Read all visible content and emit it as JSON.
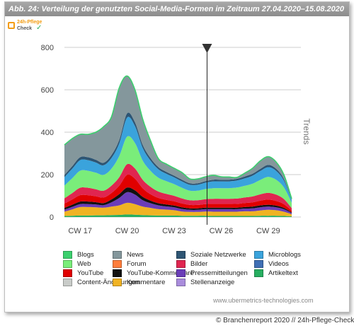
{
  "header": {
    "title": "Abb. 24: Verteilung  der genutzten  Social-Media-Formen  im Zeitraum  27.04.2020–15.08.2020"
  },
  "logo": {
    "line1": "24h-Pflege",
    "line2": "Check"
  },
  "source_note": "www.ubermetrics-technologies.com",
  "footer": "© Branchenreport 2020 // 24h-Pflege-Check.de",
  "chart_data": {
    "type": "area",
    "stacked": true,
    "title": "",
    "xlabel": "",
    "ylabel": "Trends",
    "ylim": [
      0,
      800
    ],
    "yticks": [
      0,
      200,
      400,
      600,
      800
    ],
    "grid": true,
    "legend_position": "bottom",
    "xtick_labels": [
      "CW 17",
      "CW 20",
      "CW 23",
      "CW 26",
      "CW 29"
    ],
    "xtick_positions": [
      17,
      20,
      23,
      26,
      29
    ],
    "x": [
      16,
      16.5,
      17,
      17.5,
      18,
      18.5,
      19,
      19.5,
      20,
      20.5,
      21,
      21.5,
      22,
      22.5,
      23,
      23.5,
      24,
      24.5,
      25,
      25.5,
      26,
      26.5,
      27,
      27.5,
      28,
      28.5,
      29,
      29.5,
      30,
      30.5
    ],
    "marker_x": 25.1,
    "series": [
      {
        "name": "Artikeltext",
        "color": "#27ae60",
        "values": [
          5,
          6,
          7,
          7,
          8,
          8,
          9,
          10,
          12,
          11,
          9,
          8,
          7,
          7,
          7,
          6,
          6,
          6,
          6,
          5,
          5,
          5,
          5,
          5,
          5,
          6,
          6,
          6,
          5,
          3
        ]
      },
      {
        "name": "Kommentare",
        "color": "#f0b323",
        "values": [
          20,
          30,
          40,
          40,
          38,
          36,
          40,
          45,
          55,
          50,
          40,
          35,
          30,
          28,
          25,
          20,
          18,
          18,
          20,
          20,
          20,
          20,
          20,
          22,
          22,
          25,
          28,
          26,
          20,
          10
        ]
      },
      {
        "name": "Pressemitteilungen",
        "color": "#6a3db8",
        "values": [
          10,
          12,
          14,
          14,
          13,
          12,
          20,
          35,
          50,
          45,
          30,
          22,
          18,
          15,
          14,
          12,
          10,
          10,
          11,
          12,
          12,
          12,
          12,
          13,
          14,
          15,
          15,
          14,
          12,
          6
        ]
      },
      {
        "name": "YouTube-Kommentare",
        "color": "#111111",
        "values": [
          8,
          10,
          12,
          12,
          11,
          10,
          14,
          18,
          22,
          20,
          16,
          12,
          10,
          9,
          8,
          8,
          7,
          7,
          7,
          7,
          7,
          7,
          7,
          7,
          8,
          9,
          9,
          8,
          6,
          3
        ]
      },
      {
        "name": "YouTube",
        "color": "#e00000",
        "values": [
          20,
          25,
          30,
          30,
          28,
          26,
          30,
          40,
          60,
          55,
          40,
          30,
          25,
          22,
          20,
          18,
          16,
          16,
          17,
          18,
          18,
          18,
          18,
          19,
          20,
          22,
          24,
          22,
          18,
          8
        ]
      },
      {
        "name": "Bilder",
        "color": "#e02550",
        "values": [
          25,
          30,
          35,
          35,
          33,
          32,
          35,
          40,
          50,
          48,
          40,
          35,
          30,
          28,
          26,
          24,
          22,
          22,
          23,
          24,
          24,
          24,
          25,
          26,
          28,
          30,
          32,
          30,
          24,
          12
        ]
      },
      {
        "name": "Web",
        "color": "#7aed7a",
        "values": [
          60,
          70,
          80,
          80,
          78,
          75,
          80,
          100,
          130,
          120,
          90,
          75,
          65,
          60,
          55,
          50,
          45,
          45,
          48,
          50,
          50,
          50,
          52,
          55,
          60,
          68,
          75,
          70,
          55,
          25
        ]
      },
      {
        "name": "Microblogs",
        "color": "#3aa3dc",
        "values": [
          40,
          45,
          50,
          50,
          48,
          45,
          50,
          60,
          90,
          80,
          60,
          48,
          40,
          35,
          32,
          30,
          28,
          28,
          30,
          32,
          32,
          32,
          33,
          35,
          38,
          42,
          46,
          42,
          32,
          12
        ]
      },
      {
        "name": "Soziale  Netzwerke",
        "color": "#2e5573",
        "values": [
          10,
          12,
          14,
          14,
          13,
          12,
          14,
          16,
          20,
          18,
          14,
          12,
          10,
          9,
          8,
          8,
          7,
          7,
          7,
          8,
          8,
          8,
          8,
          9,
          9,
          10,
          11,
          10,
          8,
          3
        ]
      },
      {
        "name": "News",
        "color": "#84979c",
        "values": [
          142,
          130,
          108,
          108,
          130,
          170,
          180,
          246,
          176,
          153,
          121,
          82,
          40,
          37,
          35,
          34,
          21,
          21,
          21,
          21,
          14,
          13,
          7,
          16,
          26,
          38,
          39,
          32,
          20,
          4
        ]
      },
      {
        "name": "Blogs",
        "color": "#3cd06e",
        "values": [
          0,
          0,
          0,
          0,
          0,
          0,
          0,
          0,
          0,
          0,
          0,
          0,
          0,
          0,
          0,
          0,
          0,
          0,
          0,
          0,
          0,
          0,
          0,
          0,
          0,
          0,
          0,
          0,
          0,
          0
        ]
      },
      {
        "name": "Forum",
        "color": "#ff7d3b",
        "values": [
          0,
          0,
          0,
          0,
          0,
          0,
          0,
          0,
          0,
          0,
          0,
          0,
          0,
          0,
          0,
          0,
          0,
          0,
          0,
          0,
          0,
          0,
          0,
          0,
          0,
          0,
          0,
          0,
          0,
          0
        ]
      },
      {
        "name": "Videos",
        "color": "#3f6fb5",
        "values": [
          0,
          0,
          0,
          0,
          0,
          0,
          0,
          0,
          0,
          0,
          0,
          0,
          0,
          0,
          0,
          0,
          0,
          0,
          0,
          0,
          0,
          0,
          0,
          0,
          0,
          0,
          0,
          0,
          0,
          0
        ]
      },
      {
        "name": "Content-Änderungen",
        "color": "#c9ccc9",
        "values": [
          0,
          0,
          0,
          0,
          0,
          0,
          0,
          0,
          0,
          0,
          0,
          0,
          0,
          0,
          0,
          0,
          0,
          0,
          0,
          0,
          0,
          0,
          0,
          0,
          0,
          0,
          0,
          0,
          0,
          0
        ]
      },
      {
        "name": "Stellenanzeige",
        "color": "#a98cdc",
        "values": [
          0,
          0,
          0,
          0,
          0,
          0,
          0,
          0,
          0,
          0,
          0,
          0,
          0,
          0,
          0,
          0,
          0,
          0,
          0,
          0,
          0,
          0,
          0,
          0,
          0,
          0,
          0,
          0,
          0,
          0
        ]
      }
    ],
    "legend": [
      {
        "name": "Blogs",
        "color": "#3cd06e"
      },
      {
        "name": "News",
        "color": "#84979c"
      },
      {
        "name": "Soziale  Netzwerke",
        "color": "#2e5573"
      },
      {
        "name": "Microblogs",
        "color": "#3aa3dc"
      },
      {
        "name": "Web",
        "color": "#7aed7a"
      },
      {
        "name": "Forum",
        "color": "#ff7d3b"
      },
      {
        "name": "Bilder",
        "color": "#e02550"
      },
      {
        "name": "Videos",
        "color": "#3f6fb5"
      },
      {
        "name": "YouTube",
        "color": "#e00000"
      },
      {
        "name": "YouTube-Kommentare",
        "color": "#111111"
      },
      {
        "name": "Pressemitteilungen",
        "color": "#6a3db8"
      },
      {
        "name": "Artikeltext",
        "color": "#27ae60"
      },
      {
        "name": "Content-Änderungen",
        "color": "#c9ccc9"
      },
      {
        "name": "Kommentare",
        "color": "#f0b323"
      },
      {
        "name": "Stellenanzeige",
        "color": "#a98cdc"
      }
    ]
  }
}
